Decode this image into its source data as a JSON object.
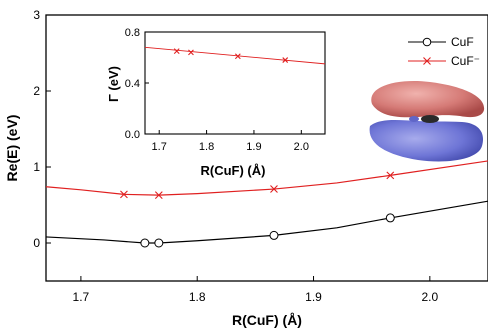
{
  "chart_data": [
    {
      "type": "line",
      "xlabel": "R(CuF) (Å)",
      "ylabel": "Re(E) (eV)",
      "xlim": [
        1.67,
        2.05
      ],
      "ylim": [
        -0.5,
        3.0
      ],
      "x_ticks": [
        "1.7",
        "1.8",
        "1.9",
        "2.0"
      ],
      "y_ticks": [
        "0",
        "1",
        "2",
        "3"
      ],
      "grid": false,
      "legend_position": "top-right",
      "series": [
        {
          "name": "CuF",
          "color": "#000000",
          "marker": "circle",
          "x": [
            1.755,
            1.767,
            1.866,
            1.966
          ],
          "y": [
            0.0,
            0.0,
            0.1,
            0.33
          ],
          "curve": {
            "x": [
              1.67,
              1.72,
              1.755,
              1.767,
              1.8,
              1.866,
              1.92,
              1.966,
              2.05
            ],
            "y": [
              0.08,
              0.04,
              0.0,
              0.0,
              0.03,
              0.1,
              0.2,
              0.33,
              0.55
            ]
          }
        },
        {
          "name": "CuF⁻",
          "color": "#e02020",
          "marker": "x",
          "x": [
            1.737,
            1.767,
            1.866,
            1.966
          ],
          "y": [
            0.64,
            0.63,
            0.71,
            0.89
          ],
          "curve": {
            "x": [
              1.67,
              1.7,
              1.737,
              1.767,
              1.8,
              1.866,
              1.92,
              1.966,
              2.05
            ],
            "y": [
              0.74,
              0.7,
              0.64,
              0.63,
              0.65,
              0.71,
              0.79,
              0.89,
              1.08
            ]
          }
        }
      ]
    },
    {
      "type": "line",
      "xlabel": "R(CuF) (Å)",
      "ylabel": "Γ (eV)",
      "xlim": [
        1.67,
        2.05
      ],
      "ylim": [
        0.0,
        0.8
      ],
      "x_ticks": [
        "1.7",
        "1.8",
        "1.9",
        "2.0"
      ],
      "y_ticks": [
        "0.0",
        "0.4",
        "0.8"
      ],
      "grid": false,
      "series": [
        {
          "color": "#e02020",
          "marker": "x",
          "x": [
            1.737,
            1.767,
            1.866,
            1.966
          ],
          "y": [
            0.65,
            0.64,
            0.61,
            0.58
          ],
          "curve": {
            "x": [
              1.67,
              2.05
            ],
            "y": [
              0.68,
              0.55
            ]
          }
        }
      ]
    }
  ],
  "orbital_colors": {
    "upper_lobe": "#c9615f",
    "lower_lobe": "#5a62c4"
  }
}
